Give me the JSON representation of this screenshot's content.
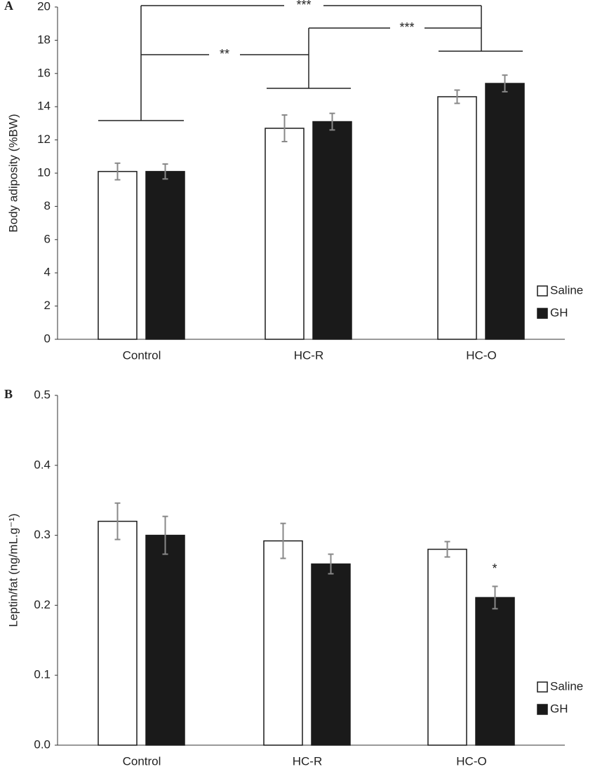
{
  "chart_data": [
    {
      "type": "bar",
      "panel": "A",
      "ylabel": "Body adiposity (%BW)",
      "categories": [
        "Control",
        "HC-R",
        "HC-O"
      ],
      "series": [
        {
          "name": "Saline",
          "color": "#ffffff",
          "values": [
            10.1,
            12.7,
            14.6
          ],
          "errors": [
            0.5,
            0.8,
            0.4
          ]
        },
        {
          "name": "GH",
          "color": "#1a1a1a",
          "values": [
            10.1,
            13.1,
            15.4
          ],
          "errors": [
            0.45,
            0.5,
            0.5
          ]
        }
      ],
      "ylim": [
        0,
        20
      ],
      "yticks": [
        0,
        2,
        4,
        6,
        8,
        10,
        12,
        14,
        16,
        18,
        20
      ],
      "annotations": [
        "***",
        "**",
        "***"
      ],
      "legend": "right"
    },
    {
      "type": "bar",
      "panel": "B",
      "ylabel": "Leptin/fat (ng/mL.g⁻¹)",
      "categories": [
        "Control",
        "HC-R",
        "HC-O"
      ],
      "series": [
        {
          "name": "Saline",
          "color": "#ffffff",
          "values": [
            0.32,
            0.292,
            0.28
          ],
          "errors": [
            0.026,
            0.025,
            0.011
          ]
        },
        {
          "name": "GH",
          "color": "#1a1a1a",
          "values": [
            0.3,
            0.259,
            0.211
          ],
          "errors": [
            0.027,
            0.014,
            0.016
          ]
        }
      ],
      "ylim": [
        0,
        0.5
      ],
      "yticks": [
        {
          "value": 0,
          "label": "0.0"
        },
        0.1,
        0.2,
        0.3,
        0.4,
        0.5
      ],
      "annotations": [
        "*"
      ],
      "legend": "right"
    }
  ]
}
